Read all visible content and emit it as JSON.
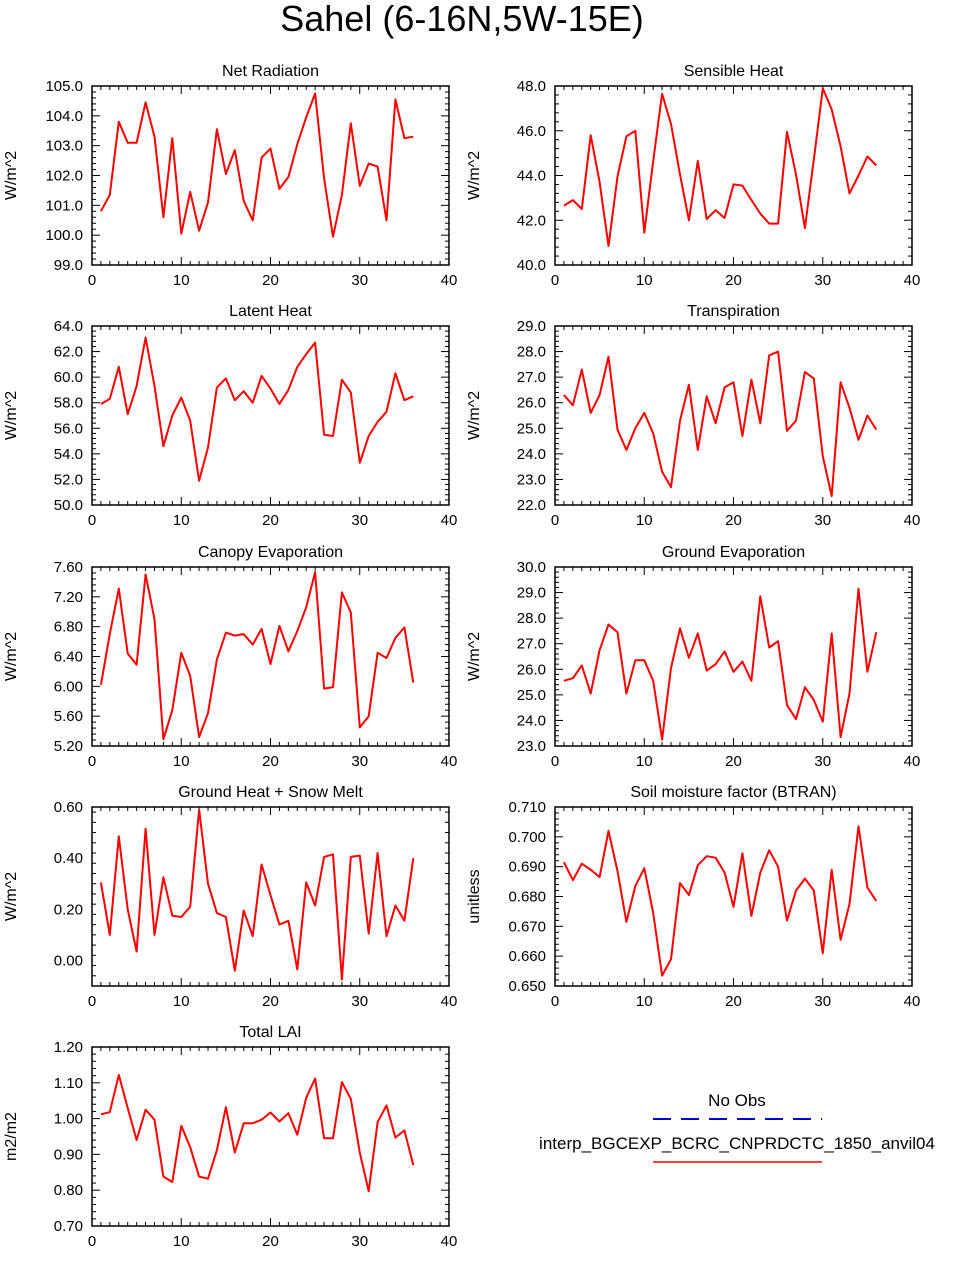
{
  "title": "Sahel (6-16N,5W-15E)",
  "legend": {
    "obs_label": "No Obs",
    "obs_color": "#0000cc",
    "model_label": "interp_BGCEXP_BCRC_CNPRDCTC_1850_anvil04",
    "model_color": "#ff0000"
  },
  "chart_data": [
    {
      "type": "line",
      "title": "Net Radiation",
      "ylabel": "W/m^2",
      "xlim": [
        0,
        40
      ],
      "ylim": [
        99.0,
        105.0
      ],
      "xticks": [
        0,
        10,
        20,
        30,
        40
      ],
      "yticks": [
        99.0,
        100.0,
        101.0,
        102.0,
        103.0,
        104.0,
        105.0
      ],
      "ytick_labels": [
        "99.0",
        "100.0",
        "101.0",
        "102.0",
        "103.0",
        "104.0",
        "105.0"
      ],
      "x": [
        1,
        2,
        3,
        4,
        5,
        6,
        7,
        8,
        9,
        10,
        11,
        12,
        13,
        14,
        15,
        16,
        17,
        18,
        19,
        20,
        21,
        22,
        23,
        24,
        25,
        26,
        27,
        28,
        29,
        30,
        31,
        32,
        33,
        34,
        35,
        36
      ],
      "values": [
        100.8,
        101.35,
        103.8,
        103.1,
        103.1,
        104.45,
        103.3,
        100.6,
        103.25,
        100.05,
        101.45,
        100.15,
        101.1,
        103.55,
        102.05,
        102.85,
        101.15,
        100.5,
        102.6,
        102.9,
        101.55,
        101.95,
        103.05,
        103.95,
        104.75,
        101.9,
        99.95,
        101.35,
        103.75,
        101.65,
        102.4,
        102.3,
        100.5,
        104.55,
        103.25,
        103.3
      ]
    },
    {
      "type": "line",
      "title": "Sensible Heat",
      "ylabel": "W/m^2",
      "xlim": [
        0,
        40
      ],
      "ylim": [
        40.0,
        48.0
      ],
      "xticks": [
        0,
        10,
        20,
        30,
        40
      ],
      "yticks": [
        40.0,
        42.0,
        44.0,
        46.0,
        48.0
      ],
      "ytick_labels": [
        "40.0",
        "42.0",
        "44.0",
        "46.0",
        "48.0"
      ],
      "x": [
        1,
        2,
        3,
        4,
        5,
        6,
        7,
        8,
        9,
        10,
        11,
        12,
        13,
        14,
        15,
        16,
        17,
        18,
        19,
        20,
        21,
        22,
        23,
        24,
        25,
        26,
        27,
        28,
        29,
        30,
        31,
        32,
        33,
        34,
        35,
        36
      ],
      "values": [
        42.65,
        42.9,
        42.5,
        45.8,
        43.7,
        40.85,
        43.95,
        45.75,
        46.0,
        41.45,
        44.65,
        47.65,
        46.3,
        44.05,
        42.0,
        44.65,
        42.05,
        42.45,
        42.1,
        43.6,
        43.55,
        42.9,
        42.3,
        41.85,
        41.85,
        45.95,
        44.05,
        41.65,
        44.7,
        47.9,
        46.95,
        45.3,
        43.2,
        44.0,
        44.85,
        44.45
      ]
    },
    {
      "type": "line",
      "title": "Latent Heat",
      "ylabel": "W/m^2",
      "xlim": [
        0,
        40
      ],
      "ylim": [
        50.0,
        64.0
      ],
      "xticks": [
        0,
        10,
        20,
        30,
        40
      ],
      "yticks": [
        50.0,
        52.0,
        54.0,
        56.0,
        58.0,
        60.0,
        62.0,
        64.0
      ],
      "ytick_labels": [
        "50.0",
        "52.0",
        "54.0",
        "56.0",
        "58.0",
        "60.0",
        "62.0",
        "64.0"
      ],
      "x": [
        1,
        2,
        3,
        4,
        5,
        6,
        7,
        8,
        9,
        10,
        11,
        12,
        13,
        14,
        15,
        16,
        17,
        18,
        19,
        20,
        21,
        22,
        23,
        24,
        25,
        26,
        27,
        28,
        29,
        30,
        31,
        32,
        33,
        34,
        35,
        36
      ],
      "values": [
        57.9,
        58.3,
        60.8,
        57.1,
        59.3,
        63.1,
        59.3,
        54.6,
        57.0,
        58.4,
        56.6,
        51.9,
        54.5,
        59.2,
        59.9,
        58.2,
        58.9,
        58.0,
        60.1,
        59.1,
        57.9,
        59.0,
        60.8,
        61.8,
        62.7,
        55.5,
        55.4,
        59.8,
        58.8,
        53.3,
        55.4,
        56.5,
        57.3,
        60.3,
        58.2,
        58.5
      ]
    },
    {
      "type": "line",
      "title": "Transpiration",
      "ylabel": "W/m^2",
      "xlim": [
        0,
        40
      ],
      "ylim": [
        22.0,
        29.0
      ],
      "xticks": [
        0,
        10,
        20,
        30,
        40
      ],
      "yticks": [
        22.0,
        23.0,
        24.0,
        25.0,
        26.0,
        27.0,
        28.0,
        29.0
      ],
      "ytick_labels": [
        "22.0",
        "23.0",
        "24.0",
        "25.0",
        "26.0",
        "27.0",
        "28.0",
        "29.0"
      ],
      "x": [
        1,
        2,
        3,
        4,
        5,
        6,
        7,
        8,
        9,
        10,
        11,
        12,
        13,
        14,
        15,
        16,
        17,
        18,
        19,
        20,
        21,
        22,
        23,
        24,
        25,
        26,
        27,
        28,
        29,
        30,
        31,
        32,
        33,
        34,
        35,
        36
      ],
      "values": [
        26.3,
        25.9,
        27.3,
        25.6,
        26.3,
        27.8,
        24.95,
        24.15,
        25.0,
        25.6,
        24.8,
        23.3,
        22.7,
        25.3,
        26.7,
        24.15,
        26.25,
        25.2,
        26.6,
        26.8,
        24.7,
        26.9,
        25.2,
        27.85,
        28.0,
        24.9,
        25.3,
        27.2,
        26.95,
        23.9,
        22.35,
        26.8,
        25.8,
        24.55,
        25.5,
        24.95
      ]
    },
    {
      "type": "line",
      "title": "Canopy Evaporation",
      "ylabel": "W/m^2",
      "xlim": [
        0,
        40
      ],
      "ylim": [
        5.2,
        7.6
      ],
      "xticks": [
        0,
        10,
        20,
        30,
        40
      ],
      "yticks": [
        5.2,
        5.6,
        6.0,
        6.4,
        6.8,
        7.2,
        7.6
      ],
      "ytick_labels": [
        "5.20",
        "5.60",
        "6.00",
        "6.40",
        "6.80",
        "7.20",
        "7.60"
      ],
      "x": [
        1,
        2,
        3,
        4,
        5,
        6,
        7,
        8,
        9,
        10,
        11,
        12,
        13,
        14,
        15,
        16,
        17,
        18,
        19,
        20,
        21,
        22,
        23,
        24,
        25,
        26,
        27,
        28,
        29,
        30,
        31,
        32,
        33,
        34,
        35,
        36
      ],
      "values": [
        6.02,
        6.7,
        7.31,
        6.44,
        6.29,
        7.5,
        6.9,
        5.29,
        5.68,
        6.45,
        6.14,
        5.32,
        5.64,
        6.36,
        6.72,
        6.68,
        6.7,
        6.56,
        6.77,
        6.3,
        6.81,
        6.47,
        6.74,
        7.06,
        7.53,
        5.97,
        5.99,
        7.26,
        6.99,
        5.45,
        5.6,
        6.45,
        6.38,
        6.65,
        6.79,
        6.05
      ]
    },
    {
      "type": "line",
      "title": "Ground Evaporation",
      "ylabel": "W/m^2",
      "xlim": [
        0,
        40
      ],
      "ylim": [
        23.0,
        30.0
      ],
      "xticks": [
        0,
        10,
        20,
        30,
        40
      ],
      "yticks": [
        23.0,
        24.0,
        25.0,
        26.0,
        27.0,
        28.0,
        29.0,
        30.0
      ],
      "ytick_labels": [
        "23.0",
        "24.0",
        "25.0",
        "26.0",
        "27.0",
        "28.0",
        "29.0",
        "30.0"
      ],
      "x": [
        1,
        2,
        3,
        4,
        5,
        6,
        7,
        8,
        9,
        10,
        11,
        12,
        13,
        14,
        15,
        16,
        17,
        18,
        19,
        20,
        21,
        22,
        23,
        24,
        25,
        26,
        27,
        28,
        29,
        30,
        31,
        32,
        33,
        34,
        35,
        36
      ],
      "values": [
        25.55,
        25.65,
        26.15,
        25.05,
        26.75,
        27.75,
        27.45,
        25.05,
        26.35,
        26.35,
        25.55,
        23.25,
        26.05,
        27.6,
        26.45,
        27.4,
        25.95,
        26.2,
        26.7,
        25.9,
        26.3,
        25.55,
        28.85,
        26.85,
        27.1,
        24.6,
        24.05,
        25.3,
        24.8,
        23.95,
        27.4,
        23.35,
        25.05,
        29.15,
        25.9,
        27.45
      ]
    },
    {
      "type": "line",
      "title": "Ground Heat + Snow Melt",
      "ylabel": "W/m^2",
      "xlim": [
        0,
        40
      ],
      "ylim": [
        -0.1,
        0.6
      ],
      "xticks": [
        0,
        10,
        20,
        30,
        40
      ],
      "yticks": [
        0.0,
        0.2,
        0.4,
        0.6
      ],
      "ytick_labels": [
        "0.00",
        "0.20",
        "0.40",
        "0.60"
      ],
      "x": [
        1,
        2,
        3,
        4,
        5,
        6,
        7,
        8,
        9,
        10,
        11,
        12,
        13,
        14,
        15,
        16,
        17,
        18,
        19,
        20,
        21,
        22,
        23,
        24,
        25,
        26,
        27,
        28,
        29,
        30,
        31,
        32,
        33,
        34,
        35,
        36
      ],
      "values": [
        0.305,
        0.1,
        0.485,
        0.2,
        0.035,
        0.515,
        0.1,
        0.325,
        0.175,
        0.17,
        0.21,
        0.59,
        0.3,
        0.185,
        0.17,
        -0.04,
        0.195,
        0.095,
        0.375,
        0.255,
        0.14,
        0.155,
        -0.035,
        0.305,
        0.215,
        0.405,
        0.415,
        -0.075,
        0.405,
        0.41,
        0.105,
        0.42,
        0.095,
        0.215,
        0.155,
        0.4
      ]
    },
    {
      "type": "line",
      "title": "Soil moisture factor (BTRAN)",
      "ylabel": "unitless",
      "xlim": [
        0,
        40
      ],
      "ylim": [
        0.65,
        0.71
      ],
      "xticks": [
        0,
        10,
        20,
        30,
        40
      ],
      "yticks": [
        0.65,
        0.66,
        0.67,
        0.68,
        0.69,
        0.7,
        0.71
      ],
      "ytick_labels": [
        "0.650",
        "0.660",
        "0.670",
        "0.680",
        "0.690",
        "0.700",
        "0.710"
      ],
      "x": [
        1,
        2,
        3,
        4,
        5,
        6,
        7,
        8,
        9,
        10,
        11,
        12,
        13,
        14,
        15,
        16,
        17,
        18,
        19,
        20,
        21,
        22,
        23,
        24,
        25,
        26,
        27,
        28,
        29,
        30,
        31,
        32,
        33,
        34,
        35,
        36
      ],
      "values": [
        0.6915,
        0.6855,
        0.691,
        0.689,
        0.6865,
        0.702,
        0.6885,
        0.6715,
        0.6835,
        0.6895,
        0.6745,
        0.6535,
        0.659,
        0.6845,
        0.6805,
        0.6905,
        0.6935,
        0.693,
        0.688,
        0.6765,
        0.6945,
        0.6735,
        0.688,
        0.6955,
        0.69,
        0.672,
        0.682,
        0.686,
        0.682,
        0.661,
        0.689,
        0.6655,
        0.6775,
        0.7035,
        0.683,
        0.6785
      ]
    },
    {
      "type": "line",
      "title": "Total LAI",
      "ylabel": "m2/m2",
      "xlim": [
        0,
        40
      ],
      "ylim": [
        0.7,
        1.2
      ],
      "xticks": [
        0,
        10,
        20,
        30,
        40
      ],
      "yticks": [
        0.7,
        0.8,
        0.9,
        1.0,
        1.1,
        1.2
      ],
      "ytick_labels": [
        "0.70",
        "0.80",
        "0.90",
        "1.00",
        "1.10",
        "1.20"
      ],
      "x": [
        1,
        2,
        3,
        4,
        5,
        6,
        7,
        8,
        9,
        10,
        11,
        12,
        13,
        14,
        15,
        16,
        17,
        18,
        19,
        20,
        21,
        22,
        23,
        24,
        25,
        26,
        27,
        28,
        29,
        30,
        31,
        32,
        33,
        34,
        35,
        36
      ],
      "values": [
        1.012,
        1.018,
        1.122,
        1.03,
        0.94,
        1.025,
        0.997,
        0.838,
        0.823,
        0.98,
        0.92,
        0.838,
        0.832,
        0.912,
        1.032,
        0.905,
        0.987,
        0.987,
        0.997,
        1.017,
        0.992,
        1.015,
        0.955,
        1.058,
        1.112,
        0.945,
        0.945,
        1.102,
        1.055,
        0.905,
        0.797,
        0.99,
        1.037,
        0.947,
        0.967,
        0.87
      ]
    }
  ]
}
